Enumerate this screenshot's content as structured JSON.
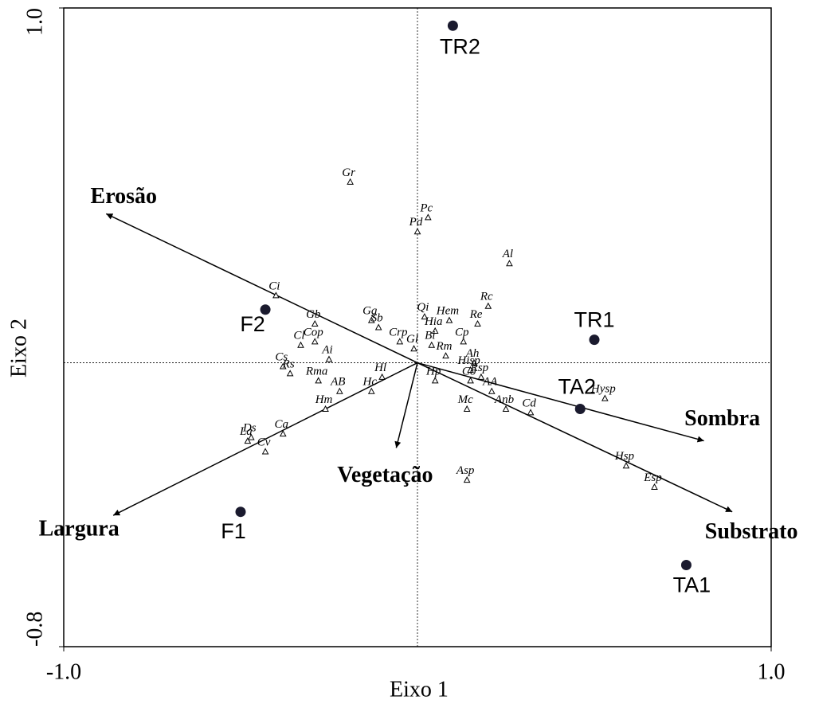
{
  "chart_data": {
    "type": "biplot",
    "xlabel": "Eixo 1",
    "ylabel": "Eixo 2",
    "xlim": [
      -1.0,
      1.0
    ],
    "ylim": [
      -0.8,
      1.0
    ],
    "xticks": [
      {
        "value": -1.0,
        "label": "-1.0"
      },
      {
        "value": 1.0,
        "label": "1.0"
      }
    ],
    "yticks": [
      {
        "value": -0.8,
        "label": "-0.8"
      },
      {
        "value": 1.0,
        "label": "1.0"
      }
    ],
    "sites": [
      {
        "name": "TR2",
        "x": 0.1,
        "y": 0.95
      },
      {
        "name": "TR1",
        "x": 0.5,
        "y": 0.065
      },
      {
        "name": "TA2",
        "x": 0.46,
        "y": -0.13
      },
      {
        "name": "TA1",
        "x": 0.76,
        "y": -0.57
      },
      {
        "name": "F1",
        "x": -0.5,
        "y": -0.42
      },
      {
        "name": "F2",
        "x": -0.43,
        "y": 0.15
      }
    ],
    "arrows": [
      {
        "name": "Erosão",
        "x": -0.88,
        "y": 0.42
      },
      {
        "name": "Sombra",
        "x": 0.81,
        "y": -0.22
      },
      {
        "name": "Substrato",
        "x": 0.89,
        "y": -0.42
      },
      {
        "name": "Largura",
        "x": -0.86,
        "y": -0.43
      },
      {
        "name": "Vegetação",
        "x": -0.06,
        "y": -0.24
      }
    ],
    "species": [
      {
        "name": "Gr",
        "x": -0.19,
        "y": 0.51
      },
      {
        "name": "Pc",
        "x": 0.03,
        "y": 0.41
      },
      {
        "name": "Pd",
        "x": 0.0,
        "y": 0.37
      },
      {
        "name": "Al",
        "x": 0.26,
        "y": 0.28
      },
      {
        "name": "Ci",
        "x": -0.4,
        "y": 0.19
      },
      {
        "name": "Rc",
        "x": 0.2,
        "y": 0.16
      },
      {
        "name": "Gb",
        "x": -0.29,
        "y": 0.11
      },
      {
        "name": "Gg",
        "x": -0.13,
        "y": 0.12
      },
      {
        "name": "Qi",
        "x": 0.02,
        "y": 0.13
      },
      {
        "name": "Hem",
        "x": 0.09,
        "y": 0.12
      },
      {
        "name": "Re",
        "x": 0.17,
        "y": 0.11
      },
      {
        "name": "Sb",
        "x": -0.11,
        "y": 0.1
      },
      {
        "name": "Hia",
        "x": 0.05,
        "y": 0.09
      },
      {
        "name": "Cl",
        "x": -0.33,
        "y": 0.05
      },
      {
        "name": "Cop",
        "x": -0.29,
        "y": 0.06
      },
      {
        "name": "Crp",
        "x": -0.05,
        "y": 0.06
      },
      {
        "name": "Gl",
        "x": -0.01,
        "y": 0.04
      },
      {
        "name": "Bi",
        "x": 0.04,
        "y": 0.05
      },
      {
        "name": "Cp",
        "x": 0.13,
        "y": 0.06
      },
      {
        "name": "Ai",
        "x": -0.25,
        "y": 0.01
      },
      {
        "name": "Rm",
        "x": 0.08,
        "y": 0.02
      },
      {
        "name": "Ah",
        "x": 0.16,
        "y": 0.0
      },
      {
        "name": "Cs",
        "x": -0.38,
        "y": -0.01
      },
      {
        "name": "Rs",
        "x": -0.36,
        "y": -0.03
      },
      {
        "name": "Hisp",
        "x": 0.15,
        "y": -0.02
      },
      {
        "name": "Rsp",
        "x": 0.18,
        "y": -0.04
      },
      {
        "name": "Hl",
        "x": -0.1,
        "y": -0.04
      },
      {
        "name": "Hp",
        "x": 0.05,
        "y": -0.05
      },
      {
        "name": "Co",
        "x": 0.15,
        "y": -0.05
      },
      {
        "name": "Rma",
        "x": -0.28,
        "y": -0.05
      },
      {
        "name": "AB",
        "x": -0.22,
        "y": -0.08
      },
      {
        "name": "AA",
        "x": 0.21,
        "y": -0.08
      },
      {
        "name": "Hc",
        "x": -0.13,
        "y": -0.08
      },
      {
        "name": "Anb",
        "x": 0.25,
        "y": -0.13
      },
      {
        "name": "Cd",
        "x": 0.32,
        "y": -0.14
      },
      {
        "name": "Mc",
        "x": 0.14,
        "y": -0.13
      },
      {
        "name": "Hysp",
        "x": 0.53,
        "y": -0.1
      },
      {
        "name": "Hm",
        "x": -0.26,
        "y": -0.13
      },
      {
        "name": "Ds",
        "x": -0.47,
        "y": -0.21
      },
      {
        "name": "La",
        "x": -0.48,
        "y": -0.22
      },
      {
        "name": "Ca",
        "x": -0.38,
        "y": -0.2
      },
      {
        "name": "Cv",
        "x": -0.43,
        "y": -0.25
      },
      {
        "name": "Asp",
        "x": 0.14,
        "y": -0.33
      },
      {
        "name": "Hsp",
        "x": 0.59,
        "y": -0.29
      },
      {
        "name": "Esp",
        "x": 0.67,
        "y": -0.35
      }
    ]
  }
}
